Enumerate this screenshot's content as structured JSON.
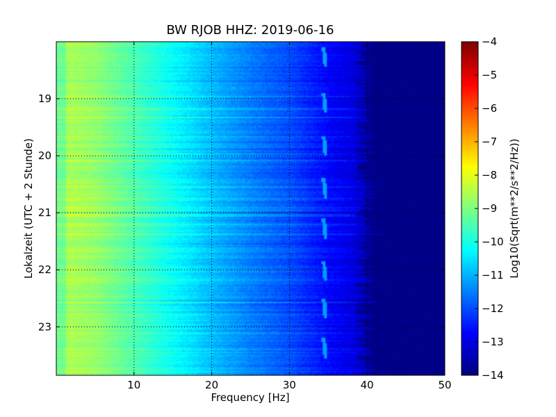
{
  "chart_data": {
    "type": "heatmap",
    "title": "BW RJOB HHZ: 2019-06-16",
    "xlabel": "Frequency [Hz]",
    "ylabel": "Lokalzeit (UTC + 2 Stunde)",
    "colorbar_label": "Log10(Sqrt(m**2/s**2/Hz))",
    "colormap": "jet",
    "xlim": [
      0,
      50
    ],
    "ylim": [
      23.85,
      18.0
    ],
    "xticks": [
      10,
      20,
      30,
      40,
      50
    ],
    "xtick_labels": [
      "10",
      "20",
      "30",
      "40",
      "50"
    ],
    "yticks": [
      19,
      20,
      21,
      22,
      23
    ],
    "ytick_labels": [
      "19",
      "20",
      "21",
      "22",
      "23"
    ],
    "clim": [
      -14,
      -4
    ],
    "cticks": [
      -14,
      -13,
      -12,
      -11,
      -10,
      -9,
      -8,
      -7,
      -6,
      -5,
      -4
    ],
    "ctick_labels": [
      "−14",
      "−13",
      "−12",
      "−11",
      "−10",
      "−9",
      "−8",
      "−7",
      "−6",
      "−5",
      "−4"
    ],
    "grid": true,
    "spectral_profile": {
      "frequency_hz": [
        0,
        2,
        5,
        10,
        15,
        20,
        25,
        30,
        35,
        38,
        40,
        41,
        50
      ],
      "log10_amplitude": [
        -8.7,
        -8.6,
        -8.8,
        -9.5,
        -10.2,
        -10.9,
        -11.5,
        -12.0,
        -12.7,
        -13.0,
        -13.5,
        -14.0,
        -14.0
      ]
    },
    "annotations": {
      "tonal_line_hz": 34.3,
      "drift_events_hours": [
        18.4,
        19.2,
        19.95,
        20.7,
        21.4,
        22.15,
        22.8,
        23.5
      ]
    }
  }
}
